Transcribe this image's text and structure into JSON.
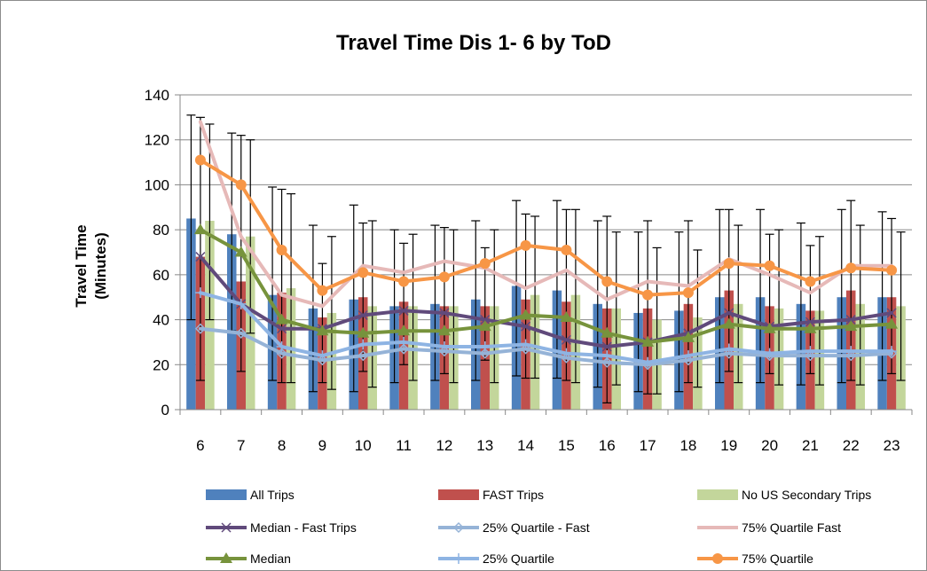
{
  "chart_data": {
    "type": "bar",
    "title": "Travel Time Dis 1- 6 by ToD",
    "ylabel_lines": [
      "Travel Time",
      "(Minutes)"
    ],
    "xlabel": "",
    "ylim": [
      0,
      140
    ],
    "yticks": [
      0,
      20,
      40,
      60,
      80,
      100,
      120,
      140
    ],
    "grid": true,
    "legend_position": "bottom",
    "categories": [
      "6",
      "7",
      "8",
      "9",
      "10",
      "11",
      "12",
      "13",
      "14",
      "15",
      "16",
      "17",
      "18",
      "19",
      "20",
      "21",
      "22",
      "23"
    ],
    "bar_series": [
      {
        "name": "All Trips",
        "color": "#4f81bd",
        "values": [
          85,
          78,
          51,
          45,
          49,
          46,
          47,
          49,
          55,
          53,
          47,
          43,
          44,
          50,
          50,
          47,
          50,
          50
        ],
        "err_high": [
          131,
          123,
          99,
          82,
          91,
          80,
          82,
          84,
          93,
          93,
          84,
          79,
          79,
          89,
          89,
          83,
          89,
          88
        ],
        "err_low": [
          40,
          35,
          13,
          8,
          8,
          12,
          13,
          13,
          15,
          14,
          10,
          8,
          8,
          12,
          12,
          11,
          12,
          13
        ]
      },
      {
        "name": "FAST Trips",
        "color": "#c0504d",
        "values": [
          68,
          57,
          52,
          41,
          50,
          48,
          46,
          46,
          49,
          48,
          45,
          45,
          47,
          53,
          46,
          44,
          53,
          50
        ],
        "err_high": [
          130,
          122,
          98,
          65,
          83,
          74,
          81,
          72,
          87,
          89,
          86,
          84,
          84,
          89,
          78,
          73,
          93,
          85
        ],
        "err_low": [
          13,
          17,
          12,
          12,
          17,
          20,
          16,
          22,
          14,
          13,
          3,
          7,
          12,
          17,
          16,
          16,
          13,
          16
        ]
      },
      {
        "name": "No US Secondary Trips",
        "color": "#c3d69b",
        "values": [
          84,
          77,
          54,
          43,
          46,
          46,
          46,
          46,
          51,
          51,
          45,
          40,
          41,
          47,
          45,
          44,
          47,
          46
        ],
        "err_high": [
          127,
          120,
          96,
          77,
          84,
          78,
          80,
          80,
          86,
          89,
          79,
          72,
          71,
          82,
          80,
          77,
          82,
          79
        ],
        "err_low": [
          40,
          34,
          12,
          9,
          10,
          13,
          12,
          12,
          14,
          12,
          11,
          7,
          10,
          12,
          11,
          11,
          11,
          13
        ]
      }
    ],
    "line_series": [
      {
        "name": "Median - Fast Trips",
        "color": "#604a7b",
        "marker": "x",
        "values": [
          68,
          47,
          36,
          36,
          42,
          44,
          43,
          40,
          37,
          31,
          28,
          30,
          34,
          43,
          37,
          39,
          40,
          43
        ]
      },
      {
        "name": "25% Quartile - Fast",
        "color": "#95b3d7",
        "marker": "diamond",
        "values": [
          36,
          34,
          25,
          22,
          24,
          27,
          26,
          25,
          27,
          23,
          21,
          20,
          22,
          25,
          24,
          24,
          24,
          25
        ]
      },
      {
        "name": "75% Quartile Fast",
        "color": "#e6b9b8",
        "marker": "none",
        "values": [
          128,
          77,
          51,
          46,
          64,
          61,
          66,
          63,
          54,
          62,
          49,
          57,
          55,
          67,
          60,
          52,
          64,
          64
        ]
      },
      {
        "name": "Median",
        "color": "#77933c",
        "marker": "triangle",
        "values": [
          80,
          70,
          40,
          35,
          34,
          35,
          35,
          37,
          42,
          41,
          34,
          30,
          32,
          38,
          36,
          36,
          37,
          38
        ]
      },
      {
        "name": "25% Quartile",
        "color": "#8eb4e3",
        "marker": "plus",
        "values": [
          52,
          47,
          28,
          24,
          29,
          30,
          28,
          28,
          29,
          25,
          24,
          21,
          24,
          27,
          25,
          26,
          26,
          26
        ]
      },
      {
        "name": "75% Quartile",
        "color": "#f79646",
        "marker": "circle",
        "values": [
          111,
          100,
          71,
          53,
          61,
          57,
          59,
          65,
          73,
          71,
          57,
          51,
          52,
          65,
          64,
          57,
          63,
          62
        ]
      }
    ],
    "legend_order": [
      "All Trips",
      "FAST Trips",
      "No US Secondary Trips",
      "Median - Fast Trips",
      "25% Quartile - Fast",
      "75% Quartile Fast",
      "Median",
      "25% Quartile",
      "75% Quartile"
    ]
  }
}
